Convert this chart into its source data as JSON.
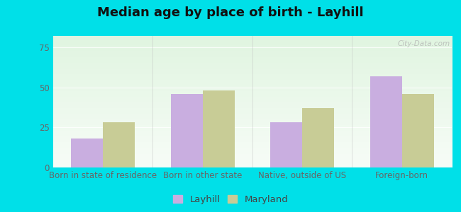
{
  "title": "Median age by place of birth - Layhill",
  "categories": [
    "Born in state of residence",
    "Born in other state",
    "Native, outside of US",
    "Foreign-born"
  ],
  "layhill_values": [
    18,
    46,
    28,
    57
  ],
  "maryland_values": [
    28,
    48,
    37,
    46
  ],
  "layhill_color": "#c9aee0",
  "maryland_color": "#c8cc96",
  "bar_width": 0.32,
  "ylim": [
    0,
    82
  ],
  "yticks": [
    0,
    25,
    50,
    75
  ],
  "legend_labels": [
    "Layhill",
    "Maryland"
  ],
  "outer_bg": "#00e0e8",
  "title_fontsize": 13,
  "axis_fontsize": 8.5,
  "legend_fontsize": 9.5,
  "watermark": "City-Data.com",
  "grid_color": "#ffffff",
  "tick_color": "#666666"
}
